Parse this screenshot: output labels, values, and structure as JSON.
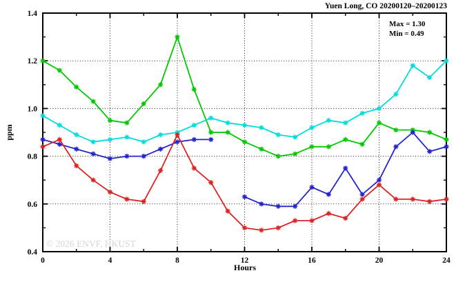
{
  "window": {
    "background": "#ffffff"
  },
  "watermark": {
    "text": "© 2026 ENVF, HKUST",
    "color": "#d6d6d6"
  },
  "chart_data": {
    "type": "line",
    "title": "Yuen Long, CO 20200120–20200123",
    "xlabel": "Hours",
    "ylabel": "ppm",
    "xlim": [
      0,
      24
    ],
    "ylim": [
      0.4,
      1.4
    ],
    "x_major_ticks": [
      0,
      4,
      8,
      12,
      16,
      20,
      24
    ],
    "x_minor_ticks": [
      2,
      6,
      10,
      14,
      18,
      22
    ],
    "y_major_ticks": [
      0.4,
      0.6,
      0.8,
      1.0,
      1.2,
      1.4
    ],
    "y_minor_ticks": [
      0.5,
      0.7,
      0.9,
      1.1,
      1.3
    ],
    "grid": "dotted lines at interior major ticks, ticks inward on all four sides",
    "legend_position": "none",
    "marker": "asterisk",
    "x": [
      0,
      1,
      2,
      3,
      4,
      5,
      6,
      7,
      8,
      9,
      10,
      11,
      12,
      13,
      14,
      15,
      16,
      17,
      18,
      19,
      20,
      21,
      22,
      23,
      24
    ],
    "series": [
      {
        "name": "green",
        "color": "#00c800",
        "values": [
          1.2,
          1.16,
          1.09,
          1.03,
          0.95,
          0.94,
          1.02,
          1.1,
          1.3,
          1.08,
          0.9,
          0.9,
          0.86,
          0.83,
          0.8,
          0.81,
          0.84,
          0.84,
          0.87,
          0.85,
          0.94,
          0.91,
          0.91,
          0.9,
          0.87
        ]
      },
      {
        "name": "cyan",
        "color": "#00dcdc",
        "values": [
          0.97,
          0.93,
          0.89,
          0.86,
          0.87,
          0.88,
          0.86,
          0.89,
          0.9,
          0.93,
          0.96,
          0.94,
          0.93,
          0.92,
          0.89,
          0.88,
          0.92,
          0.95,
          0.94,
          0.98,
          1.0,
          1.06,
          1.18,
          1.13,
          1.2
        ]
      },
      {
        "name": "blue",
        "color": "#2323cd",
        "values": [
          0.87,
          0.85,
          0.83,
          0.81,
          0.79,
          0.8,
          0.8,
          0.83,
          0.86,
          0.87,
          0.87,
          null,
          0.63,
          0.6,
          0.59,
          0.59,
          0.67,
          0.64,
          0.75,
          0.64,
          0.7,
          0.84,
          0.9,
          0.82,
          0.84
        ]
      },
      {
        "name": "red",
        "color": "#de2222",
        "values": [
          0.84,
          0.87,
          0.76,
          0.7,
          0.65,
          0.62,
          0.61,
          0.74,
          0.89,
          0.75,
          0.69,
          0.57,
          0.5,
          0.49,
          0.5,
          0.53,
          0.53,
          0.56,
          0.54,
          0.62,
          0.68,
          0.62,
          0.62,
          0.61,
          0.62
        ]
      }
    ],
    "annotations": {
      "max_label": "Max = 1.30",
      "min_label": "Min = 0.49"
    }
  }
}
